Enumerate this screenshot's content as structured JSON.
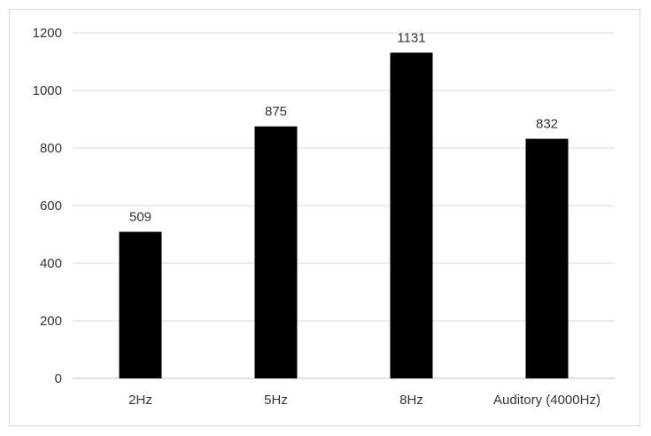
{
  "chart_data": {
    "type": "bar",
    "title": "",
    "xlabel": "",
    "ylabel": "",
    "categories": [
      "2Hz",
      "5Hz",
      "8Hz",
      "Auditory (4000Hz)"
    ],
    "values": [
      509,
      875,
      1131,
      832
    ],
    "data_labels": [
      "509",
      "875",
      "1131",
      "832"
    ],
    "ylim": [
      0,
      1200
    ],
    "yticks": [
      0,
      200,
      400,
      600,
      800,
      1000,
      1200
    ],
    "ytick_labels": [
      "0",
      "200",
      "400",
      "600",
      "800",
      "1000",
      "1200"
    ],
    "grid": true,
    "legend": "none",
    "bar_color": "#000000",
    "grid_color": "#d9d9d9"
  }
}
